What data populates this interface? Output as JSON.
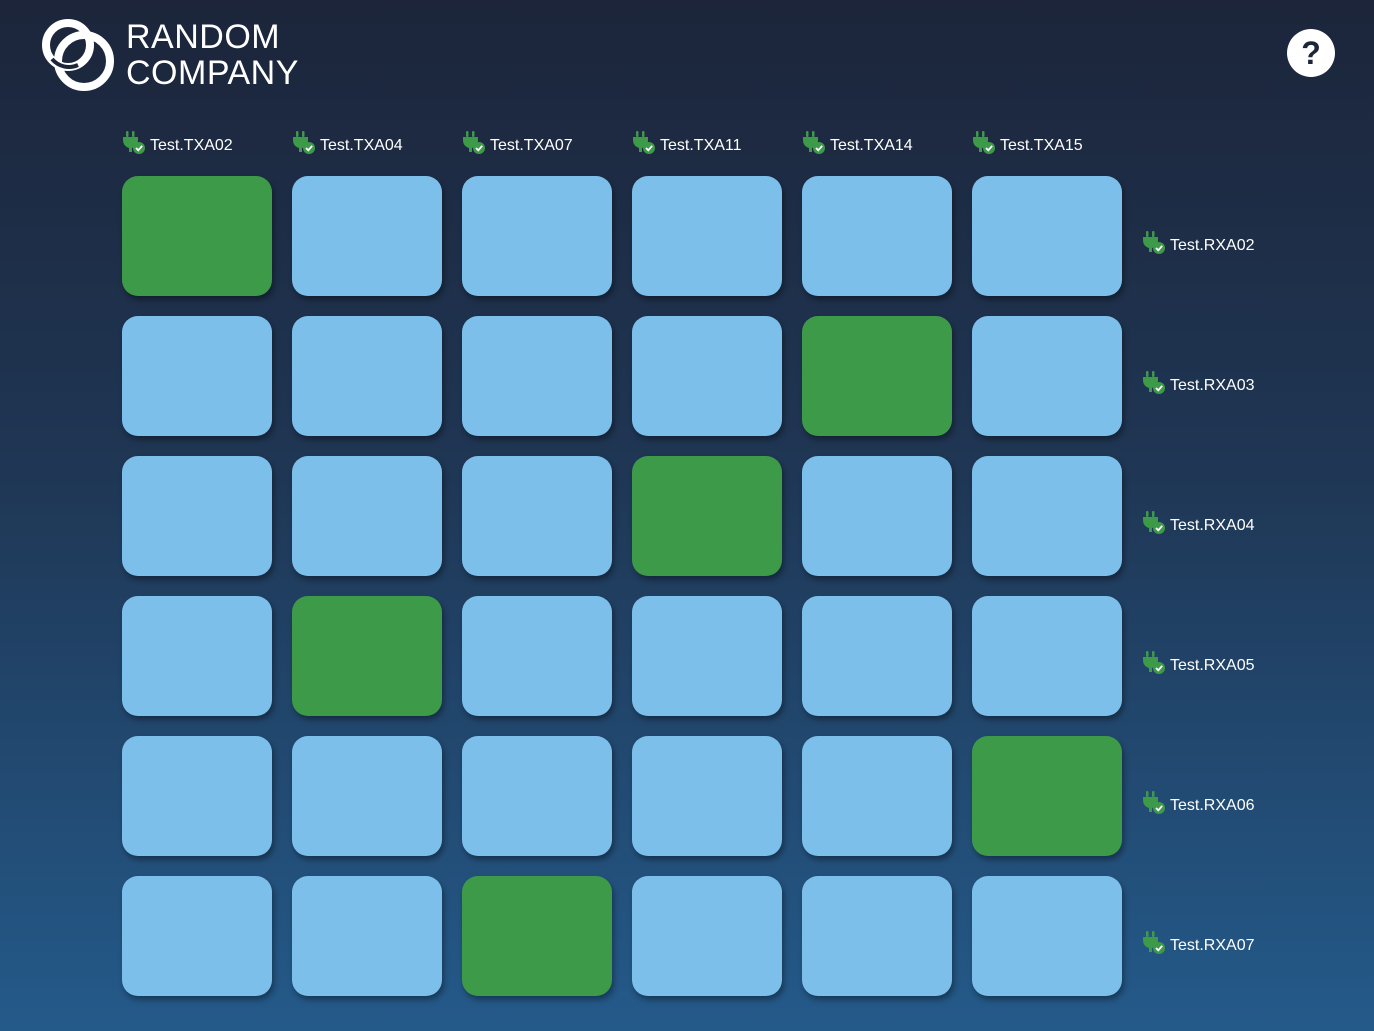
{
  "logo": {
    "line1": "RANDOM",
    "line2": "COMPANY"
  },
  "help": {
    "label": "?"
  },
  "icons": {
    "connection": "plug-check-icon",
    "help": "question-icon"
  },
  "colors": {
    "tile_off": "#7bbfea",
    "tile_on": "#3d9a48",
    "status_connected": "#3d9a48"
  },
  "transmitters": [
    {
      "label": "Test.TXA02",
      "status": "connected"
    },
    {
      "label": "Test.TXA04",
      "status": "connected"
    },
    {
      "label": "Test.TXA07",
      "status": "connected"
    },
    {
      "label": "Test.TXA11",
      "status": "connected"
    },
    {
      "label": "Test.TXA14",
      "status": "connected"
    },
    {
      "label": "Test.TXA15",
      "status": "connected"
    }
  ],
  "receivers": [
    {
      "label": "Test.RXA02",
      "status": "connected"
    },
    {
      "label": "Test.RXA03",
      "status": "connected"
    },
    {
      "label": "Test.RXA04",
      "status": "connected"
    },
    {
      "label": "Test.RXA05",
      "status": "connected"
    },
    {
      "label": "Test.RXA06",
      "status": "connected"
    },
    {
      "label": "Test.RXA07",
      "status": "connected"
    }
  ],
  "routes": [
    [
      true,
      false,
      false,
      false,
      false,
      false
    ],
    [
      false,
      false,
      false,
      false,
      true,
      false
    ],
    [
      false,
      false,
      false,
      true,
      false,
      false
    ],
    [
      false,
      true,
      false,
      false,
      false,
      false
    ],
    [
      false,
      false,
      false,
      false,
      false,
      true
    ],
    [
      false,
      false,
      true,
      false,
      false,
      false
    ]
  ]
}
